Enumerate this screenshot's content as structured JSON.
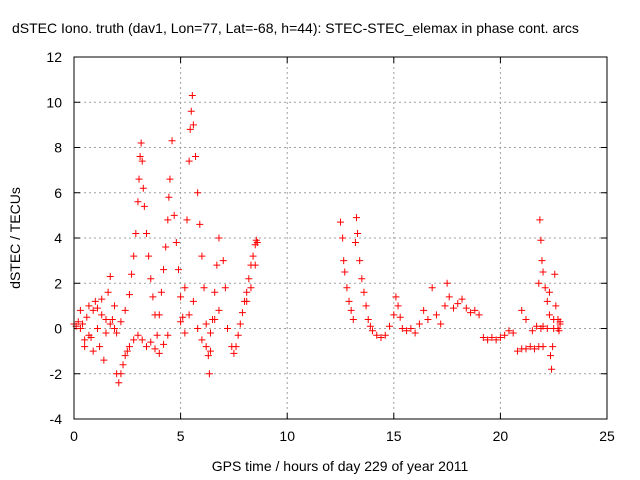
{
  "chart_data": {
    "type": "scatter",
    "title": "dSTEC Iono. truth (dav1, Lon=77, Lat=-68, h=44): STEC-STEC_elemax in phase cont. arcs",
    "xlabel": "GPS time / hours of day 229 of year 2011",
    "ylabel": "dSTEC  / TECUs",
    "xlim": [
      0,
      25
    ],
    "ylim": [
      -4,
      12
    ],
    "xticks": [
      0,
      5,
      10,
      15,
      20,
      25
    ],
    "yticks": [
      -4,
      -2,
      0,
      2,
      4,
      6,
      8,
      10,
      12
    ],
    "grid": true,
    "marker": "plus",
    "color": "#ff0000",
    "series": [
      {
        "points": [
          [
            0.0,
            0.2
          ],
          [
            0.1,
            0.1
          ],
          [
            0.2,
            0.3
          ],
          [
            0.3,
            0.0
          ],
          [
            0.4,
            0.2
          ],
          [
            0.5,
            -0.5
          ],
          [
            0.6,
            0.5
          ],
          [
            0.7,
            1.0
          ],
          [
            0.8,
            -0.4
          ],
          [
            0.9,
            0.8
          ],
          [
            1.0,
            1.2
          ],
          [
            1.1,
            0.0
          ],
          [
            1.2,
            -0.8
          ],
          [
            1.3,
            0.6
          ],
          [
            1.4,
            -1.4
          ],
          [
            1.5,
            -0.2
          ],
          [
            1.6,
            1.6
          ],
          [
            1.7,
            2.3
          ],
          [
            1.8,
            0.4
          ],
          [
            1.9,
            1.0
          ],
          [
            0.3,
            0.8
          ],
          [
            0.5,
            -0.8
          ],
          [
            0.7,
            -0.3
          ],
          [
            0.9,
            -1.0
          ],
          [
            1.1,
            0.9
          ],
          [
            1.3,
            1.3
          ],
          [
            1.5,
            0.4
          ],
          [
            1.7,
            0.2
          ],
          [
            1.9,
            0.0
          ],
          [
            2.0,
            -0.2
          ],
          [
            2.0,
            -2.0
          ],
          [
            2.1,
            -2.4
          ],
          [
            2.2,
            -2.0
          ],
          [
            2.3,
            -1.6
          ],
          [
            2.4,
            -1.2
          ],
          [
            2.5,
            -1.0
          ],
          [
            2.6,
            -0.8
          ],
          [
            2.8,
            -0.5
          ],
          [
            3.0,
            -0.3
          ],
          [
            3.2,
            -0.5
          ],
          [
            3.4,
            -0.8
          ],
          [
            3.6,
            -0.6
          ],
          [
            3.8,
            -0.9
          ],
          [
            4.0,
            -1.1
          ],
          [
            4.2,
            -0.7
          ],
          [
            4.4,
            -0.3
          ],
          [
            2.2,
            0.3
          ],
          [
            2.4,
            0.8
          ],
          [
            2.6,
            1.5
          ],
          [
            2.7,
            2.4
          ],
          [
            2.8,
            3.2
          ],
          [
            2.9,
            4.2
          ],
          [
            3.0,
            5.6
          ],
          [
            3.05,
            6.6
          ],
          [
            3.1,
            7.6
          ],
          [
            3.15,
            8.2
          ],
          [
            3.2,
            7.4
          ],
          [
            3.25,
            6.2
          ],
          [
            3.3,
            5.4
          ],
          [
            3.4,
            4.2
          ],
          [
            3.5,
            3.2
          ],
          [
            3.6,
            2.2
          ],
          [
            3.7,
            1.4
          ],
          [
            3.8,
            0.6
          ],
          [
            3.9,
            -0.3
          ],
          [
            4.0,
            0.6
          ],
          [
            4.1,
            1.6
          ],
          [
            4.2,
            2.6
          ],
          [
            4.3,
            3.6
          ],
          [
            4.4,
            4.8
          ],
          [
            4.45,
            5.8
          ],
          [
            4.5,
            6.6
          ],
          [
            4.6,
            8.3
          ],
          [
            4.7,
            5.0
          ],
          [
            4.8,
            3.8
          ],
          [
            4.9,
            2.6
          ],
          [
            5.0,
            1.4
          ],
          [
            5.1,
            0.5
          ],
          [
            5.2,
            1.8
          ],
          [
            5.3,
            4.8
          ],
          [
            5.4,
            7.4
          ],
          [
            5.45,
            8.8
          ],
          [
            5.5,
            9.6
          ],
          [
            5.55,
            10.3
          ],
          [
            5.6,
            9.0
          ],
          [
            5.7,
            7.6
          ],
          [
            5.8,
            6.0
          ],
          [
            5.9,
            4.6
          ],
          [
            6.0,
            3.2
          ],
          [
            6.1,
            1.8
          ],
          [
            6.2,
            0.2
          ],
          [
            6.3,
            -1.2
          ],
          [
            6.35,
            -2.0
          ],
          [
            6.4,
            -1.0
          ],
          [
            6.5,
            0.4
          ],
          [
            6.6,
            1.6
          ],
          [
            6.7,
            2.8
          ],
          [
            6.8,
            4.0
          ],
          [
            7.0,
            3.0
          ],
          [
            7.1,
            1.8
          ],
          [
            5.0,
            0.3
          ],
          [
            5.2,
            -0.2
          ],
          [
            5.4,
            0.6
          ],
          [
            5.6,
            1.2
          ],
          [
            5.8,
            0.0
          ],
          [
            6.0,
            -0.5
          ],
          [
            6.2,
            -0.8
          ],
          [
            6.4,
            -0.2
          ],
          [
            6.6,
            0.4
          ],
          [
            6.8,
            0.8
          ],
          [
            7.2,
            0.0
          ],
          [
            7.4,
            -0.8
          ],
          [
            7.5,
            -1.1
          ],
          [
            7.6,
            -0.8
          ],
          [
            7.7,
            -0.3
          ],
          [
            7.8,
            0.2
          ],
          [
            7.9,
            0.7
          ],
          [
            8.0,
            1.2
          ],
          [
            8.1,
            1.6
          ],
          [
            8.2,
            2.2
          ],
          [
            8.3,
            2.8
          ],
          [
            8.4,
            3.2
          ],
          [
            8.5,
            3.7
          ],
          [
            8.55,
            3.9
          ],
          [
            8.6,
            3.8
          ],
          [
            8.5,
            2.8
          ],
          [
            8.3,
            1.8
          ],
          [
            8.1,
            1.2
          ]
        ]
      },
      {
        "points": [
          [
            12.5,
            4.7
          ],
          [
            12.6,
            4.0
          ],
          [
            12.65,
            3.0
          ],
          [
            12.7,
            2.5
          ],
          [
            12.8,
            1.8
          ],
          [
            12.9,
            1.2
          ],
          [
            13.0,
            0.8
          ],
          [
            13.1,
            0.4
          ],
          [
            13.2,
            3.8
          ],
          [
            13.25,
            4.9
          ],
          [
            13.3,
            4.2
          ],
          [
            13.4,
            3.0
          ],
          [
            13.5,
            2.2
          ],
          [
            13.6,
            1.6
          ],
          [
            13.7,
            1.0
          ],
          [
            13.8,
            0.4
          ],
          [
            13.9,
            0.1
          ],
          [
            14.0,
            -0.1
          ],
          [
            14.2,
            -0.3
          ],
          [
            14.4,
            -0.4
          ],
          [
            14.6,
            -0.3
          ],
          [
            14.8,
            0.1
          ],
          [
            15.0,
            0.6
          ],
          [
            15.1,
            1.4
          ],
          [
            15.2,
            1.0
          ],
          [
            15.3,
            0.5
          ],
          [
            15.4,
            0.0
          ],
          [
            15.6,
            -0.1
          ],
          [
            15.8,
            0.0
          ],
          [
            16.0,
            -0.2
          ],
          [
            16.2,
            0.2
          ],
          [
            16.4,
            0.8
          ],
          [
            16.6,
            0.4
          ],
          [
            16.8,
            1.8
          ],
          [
            17.0,
            0.6
          ],
          [
            17.2,
            0.2
          ],
          [
            17.4,
            1.0
          ],
          [
            17.5,
            2.0
          ],
          [
            17.6,
            1.4
          ],
          [
            17.8,
            0.9
          ],
          [
            18.0,
            1.1
          ],
          [
            18.2,
            1.3
          ],
          [
            18.4,
            0.9
          ],
          [
            18.6,
            0.7
          ],
          [
            18.8,
            0.8
          ],
          [
            19.0,
            0.6
          ],
          [
            19.2,
            -0.4
          ],
          [
            19.4,
            -0.5
          ],
          [
            19.6,
            -0.4
          ],
          [
            19.8,
            -0.5
          ],
          [
            20.0,
            -0.4
          ],
          [
            20.2,
            -0.3
          ],
          [
            20.4,
            -0.1
          ],
          [
            20.6,
            -0.2
          ],
          [
            20.8,
            -1.0
          ],
          [
            21.0,
            -0.9
          ],
          [
            21.2,
            -0.9
          ],
          [
            21.4,
            -0.8
          ],
          [
            21.6,
            -0.9
          ],
          [
            21.8,
            -0.8
          ],
          [
            22.0,
            -0.8
          ],
          [
            21.0,
            0.8
          ],
          [
            21.2,
            0.4
          ],
          [
            21.5,
            -0.1
          ],
          [
            21.7,
            0.1
          ],
          [
            21.8,
            2.0
          ],
          [
            21.85,
            4.8
          ],
          [
            21.9,
            3.9
          ],
          [
            21.95,
            3.0
          ],
          [
            22.0,
            2.5
          ],
          [
            22.1,
            1.8
          ],
          [
            22.2,
            1.2
          ],
          [
            22.3,
            0.6
          ],
          [
            22.35,
            -1.2
          ],
          [
            22.4,
            -1.8
          ],
          [
            22.45,
            -0.8
          ],
          [
            22.5,
            0.4
          ],
          [
            22.55,
            2.4
          ],
          [
            22.6,
            1.0
          ],
          [
            22.7,
            0.4
          ],
          [
            22.8,
            0.2
          ],
          [
            22.3,
            1.6
          ],
          [
            22.2,
            0.0
          ],
          [
            22.0,
            0.1
          ],
          [
            21.9,
            0.0
          ],
          [
            22.5,
            0.0
          ],
          [
            22.7,
            0.0
          ],
          [
            22.75,
            -0.1
          ],
          [
            22.8,
            0.3
          ]
        ]
      }
    ]
  }
}
